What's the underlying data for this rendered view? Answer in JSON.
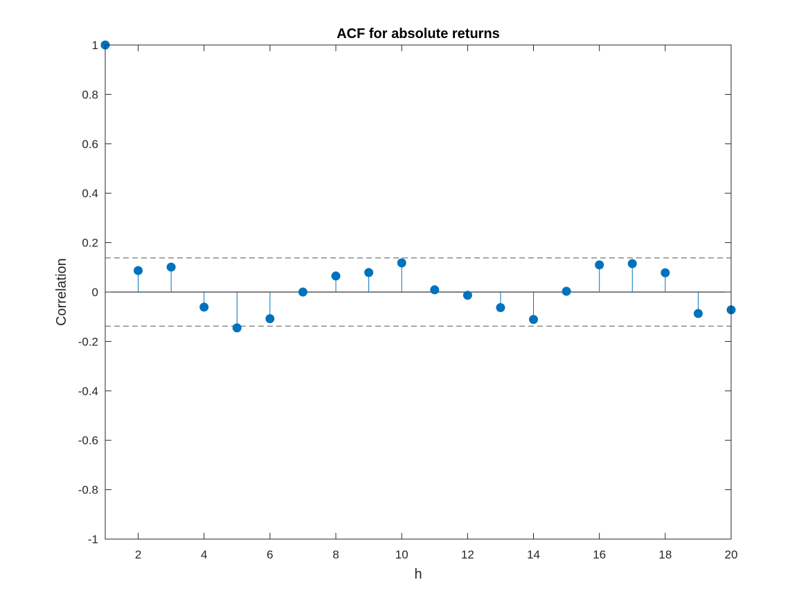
{
  "chart_data": {
    "type": "stem",
    "title": "ACF for absolute returns",
    "xlabel": "h",
    "ylabel": "Correlation",
    "xlim": [
      1,
      20
    ],
    "ylim": [
      -1,
      1
    ],
    "xticks": [
      2,
      4,
      6,
      8,
      10,
      12,
      14,
      16,
      18,
      20
    ],
    "yticks": [
      -1,
      -0.8,
      -0.6,
      -0.4,
      -0.2,
      0,
      0.2,
      0.4,
      0.6,
      0.8,
      1
    ],
    "xtick_labels": [
      "2",
      "4",
      "6",
      "8",
      "10",
      "12",
      "14",
      "16",
      "18",
      "20"
    ],
    "ytick_labels": [
      "-1",
      "-0.8",
      "-0.6",
      "-0.4",
      "-0.2",
      "0",
      "0.2",
      "0.4",
      "0.6",
      "0.8",
      "1"
    ],
    "grid": false,
    "box": true,
    "series": [
      {
        "x": [
          1,
          2,
          3,
          4,
          5,
          6,
          7,
          8,
          9,
          10,
          11,
          12,
          13,
          14,
          15,
          16,
          17,
          18,
          19,
          20
        ],
        "values": [
          1.0,
          0.087,
          0.101,
          -0.061,
          -0.145,
          -0.108,
          0.0,
          0.065,
          0.079,
          0.118,
          0.009,
          -0.013,
          -0.063,
          -0.111,
          0.003,
          0.11,
          0.115,
          0.078,
          -0.087,
          -0.072
        ]
      }
    ],
    "confidence_bounds": [
      0.138,
      -0.138
    ],
    "colors": {
      "stem": "#0072BD",
      "bounds": "#555555",
      "axes": "#262626"
    }
  }
}
